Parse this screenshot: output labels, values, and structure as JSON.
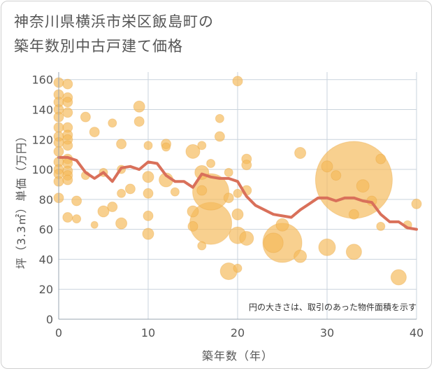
{
  "chart_data": {
    "type": "scatter",
    "title": "神奈川県横浜市栄区飯島町の\n築年数別中古戸建て価格",
    "xlabel": "築年数（年）",
    "ylabel": "坪（3.3㎡）単価（万円）",
    "xlim": [
      0,
      40
    ],
    "ylim": [
      0,
      165
    ],
    "x_ticks": [
      0,
      10,
      20,
      30,
      40
    ],
    "y_ticks": [
      0,
      20,
      40,
      60,
      80,
      100,
      120,
      140,
      160
    ],
    "grid": true,
    "note": "円の大きさは、取引のあった物件面積を示す",
    "colors": {
      "bubble": "#f5b95a",
      "line": "#d9705a",
      "grid": "#c9d3dd"
    },
    "series": [
      {
        "kind": "bubble",
        "points": [
          {
            "x": 0,
            "y": 158,
            "s": 7
          },
          {
            "x": 0,
            "y": 150,
            "s": 7
          },
          {
            "x": 0,
            "y": 145,
            "s": 7
          },
          {
            "x": 0,
            "y": 140,
            "s": 7
          },
          {
            "x": 0,
            "y": 135,
            "s": 7
          },
          {
            "x": 0,
            "y": 128,
            "s": 7
          },
          {
            "x": 0,
            "y": 122,
            "s": 7
          },
          {
            "x": 0,
            "y": 118,
            "s": 7
          },
          {
            "x": 0,
            "y": 112,
            "s": 7
          },
          {
            "x": 0,
            "y": 105,
            "s": 7
          },
          {
            "x": 0,
            "y": 100,
            "s": 7
          },
          {
            "x": 0,
            "y": 97,
            "s": 7
          },
          {
            "x": 0,
            "y": 92,
            "s": 7
          },
          {
            "x": 0,
            "y": 81,
            "s": 7
          },
          {
            "x": 1,
            "y": 157,
            "s": 7
          },
          {
            "x": 1,
            "y": 148,
            "s": 7
          },
          {
            "x": 1,
            "y": 145,
            "s": 7
          },
          {
            "x": 1,
            "y": 138,
            "s": 7
          },
          {
            "x": 1,
            "y": 128,
            "s": 7
          },
          {
            "x": 1,
            "y": 123,
            "s": 7
          },
          {
            "x": 1,
            "y": 120,
            "s": 7
          },
          {
            "x": 1,
            "y": 116,
            "s": 7
          },
          {
            "x": 1,
            "y": 107,
            "s": 7
          },
          {
            "x": 1,
            "y": 104,
            "s": 7
          },
          {
            "x": 1,
            "y": 99,
            "s": 7
          },
          {
            "x": 1,
            "y": 96,
            "s": 7
          },
          {
            "x": 1,
            "y": 93,
            "s": 7
          },
          {
            "x": 1,
            "y": 68,
            "s": 7
          },
          {
            "x": 2,
            "y": 79,
            "s": 7
          },
          {
            "x": 2,
            "y": 67,
            "s": 6
          },
          {
            "x": 3,
            "y": 135,
            "s": 7
          },
          {
            "x": 3,
            "y": 96,
            "s": 6
          },
          {
            "x": 4,
            "y": 125,
            "s": 7
          },
          {
            "x": 4,
            "y": 63,
            "s": 5
          },
          {
            "x": 5,
            "y": 98,
            "s": 6
          },
          {
            "x": 5,
            "y": 72,
            "s": 8
          },
          {
            "x": 6,
            "y": 131,
            "s": 6
          },
          {
            "x": 6,
            "y": 75,
            "s": 7
          },
          {
            "x": 7,
            "y": 117,
            "s": 7
          },
          {
            "x": 7,
            "y": 100,
            "s": 6
          },
          {
            "x": 7,
            "y": 84,
            "s": 6
          },
          {
            "x": 7,
            "y": 64,
            "s": 8
          },
          {
            "x": 8,
            "y": 87,
            "s": 7
          },
          {
            "x": 9,
            "y": 142,
            "s": 8
          },
          {
            "x": 9,
            "y": 132,
            "s": 7
          },
          {
            "x": 10,
            "y": 116,
            "s": 6
          },
          {
            "x": 10,
            "y": 95,
            "s": 8
          },
          {
            "x": 10,
            "y": 84,
            "s": 7
          },
          {
            "x": 10,
            "y": 69,
            "s": 7
          },
          {
            "x": 10,
            "y": 57,
            "s": 8
          },
          {
            "x": 12,
            "y": 117,
            "s": 7
          },
          {
            "x": 12,
            "y": 115,
            "s": 6
          },
          {
            "x": 12,
            "y": 93,
            "s": 10
          },
          {
            "x": 13,
            "y": 85,
            "s": 6
          },
          {
            "x": 15,
            "y": 112,
            "s": 10
          },
          {
            "x": 15,
            "y": 72,
            "s": 8
          },
          {
            "x": 15,
            "y": 62,
            "s": 7
          },
          {
            "x": 16,
            "y": 116,
            "s": 6
          },
          {
            "x": 16,
            "y": 98,
            "s": 10
          },
          {
            "x": 16,
            "y": 86,
            "s": 7
          },
          {
            "x": 16,
            "y": 49,
            "s": 6
          },
          {
            "x": 17,
            "y": 104,
            "s": 6
          },
          {
            "x": 17,
            "y": 85,
            "s": 26
          },
          {
            "x": 17,
            "y": 64,
            "s": 30
          },
          {
            "x": 18,
            "y": 134,
            "s": 6
          },
          {
            "x": 18,
            "y": 122,
            "s": 7
          },
          {
            "x": 19,
            "y": 98,
            "s": 6
          },
          {
            "x": 19,
            "y": 81,
            "s": 7
          },
          {
            "x": 19,
            "y": 32,
            "s": 12
          },
          {
            "x": 20,
            "y": 159,
            "s": 7
          },
          {
            "x": 20,
            "y": 84,
            "s": 6
          },
          {
            "x": 20,
            "y": 70,
            "s": 8
          },
          {
            "x": 20,
            "y": 56,
            "s": 12
          },
          {
            "x": 20,
            "y": 34,
            "s": 6
          },
          {
            "x": 21,
            "y": 107,
            "s": 7
          },
          {
            "x": 21,
            "y": 103,
            "s": 7
          },
          {
            "x": 21,
            "y": 86,
            "s": 7
          },
          {
            "x": 21,
            "y": 54,
            "s": 10
          },
          {
            "x": 24,
            "y": 51,
            "s": 14
          },
          {
            "x": 25,
            "y": 51,
            "s": 28
          },
          {
            "x": 25,
            "y": 63,
            "s": 9
          },
          {
            "x": 27,
            "y": 111,
            "s": 8
          },
          {
            "x": 27,
            "y": 42,
            "s": 9
          },
          {
            "x": 30,
            "y": 102,
            "s": 8
          },
          {
            "x": 30,
            "y": 48,
            "s": 12
          },
          {
            "x": 31,
            "y": 96,
            "s": 7
          },
          {
            "x": 33,
            "y": 93,
            "s": 55
          },
          {
            "x": 33,
            "y": 70,
            "s": 7
          },
          {
            "x": 33,
            "y": 45,
            "s": 11
          },
          {
            "x": 34,
            "y": 89,
            "s": 9
          },
          {
            "x": 35,
            "y": 79,
            "s": 7
          },
          {
            "x": 36,
            "y": 107,
            "s": 7
          },
          {
            "x": 36,
            "y": 62,
            "s": 6
          },
          {
            "x": 38,
            "y": 28,
            "s": 11
          },
          {
            "x": 39,
            "y": 63,
            "s": 6
          },
          {
            "x": 40,
            "y": 77,
            "s": 7
          }
        ]
      },
      {
        "kind": "line",
        "x": [
          0,
          1,
          2,
          3,
          4,
          5,
          6,
          7,
          8,
          9,
          10,
          11,
          12,
          13,
          14,
          15,
          16,
          17,
          18,
          19,
          20,
          21,
          22,
          23,
          24,
          25,
          26,
          27,
          28,
          29,
          30,
          31,
          32,
          33,
          34,
          35,
          36,
          37,
          38,
          39,
          40
        ],
        "values": [
          108,
          108,
          106,
          98,
          94,
          98,
          92,
          101,
          102,
          100,
          105,
          104,
          96,
          92,
          92,
          88,
          97,
          95,
          94,
          94,
          92,
          82,
          76,
          73,
          70,
          69,
          68,
          73,
          77,
          81,
          81,
          79,
          81,
          81,
          79,
          78,
          70,
          65,
          65,
          61,
          60
        ]
      }
    ]
  }
}
